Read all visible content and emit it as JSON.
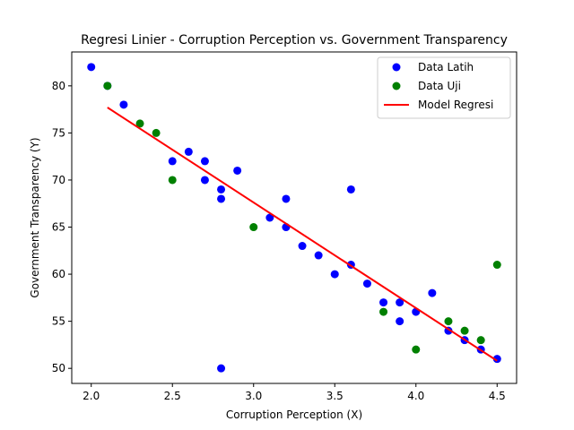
{
  "chart_data": {
    "type": "scatter",
    "title": "Regresi Linier - Corruption Perception vs. Government Transparency",
    "xlabel": "Corruption Perception (X)",
    "ylabel": "Government Transparency (Y)",
    "xlim": [
      1.88,
      4.62
    ],
    "ylim": [
      48.4,
      83.6
    ],
    "xticks": [
      2.0,
      2.5,
      3.0,
      3.5,
      4.0,
      4.5
    ],
    "yticks": [
      50,
      55,
      60,
      65,
      70,
      75,
      80
    ],
    "grid": false,
    "legend_position": "top-right",
    "series": [
      {
        "name": "Data Latih",
        "kind": "scatter",
        "color": "#0000ff",
        "points": [
          [
            2.0,
            82
          ],
          [
            2.1,
            80
          ],
          [
            2.2,
            78
          ],
          [
            2.5,
            72
          ],
          [
            2.6,
            73
          ],
          [
            2.7,
            72
          ],
          [
            2.7,
            70
          ],
          [
            2.8,
            69
          ],
          [
            2.8,
            68
          ],
          [
            2.8,
            50
          ],
          [
            2.9,
            71
          ],
          [
            3.1,
            66
          ],
          [
            3.2,
            68
          ],
          [
            3.2,
            65
          ],
          [
            3.3,
            63
          ],
          [
            3.4,
            62
          ],
          [
            3.5,
            60
          ],
          [
            3.6,
            69
          ],
          [
            3.6,
            61
          ],
          [
            3.7,
            59
          ],
          [
            3.8,
            57
          ],
          [
            3.9,
            57
          ],
          [
            3.9,
            55
          ],
          [
            4.0,
            56
          ],
          [
            4.1,
            58
          ],
          [
            4.2,
            54
          ],
          [
            4.3,
            53
          ],
          [
            4.4,
            52
          ],
          [
            4.5,
            51
          ]
        ]
      },
      {
        "name": "Data Uji",
        "kind": "scatter",
        "color": "#008000",
        "points": [
          [
            2.1,
            80
          ],
          [
            2.3,
            76
          ],
          [
            2.4,
            75
          ],
          [
            2.5,
            70
          ],
          [
            3.0,
            65
          ],
          [
            3.8,
            56
          ],
          [
            4.0,
            52
          ],
          [
            4.2,
            55
          ],
          [
            4.3,
            54
          ],
          [
            4.4,
            53
          ],
          [
            4.5,
            61
          ]
        ]
      },
      {
        "name": "Model Regresi",
        "kind": "line",
        "color": "#ff0000",
        "points": [
          [
            2.1,
            77.7
          ],
          [
            4.5,
            50.8
          ]
        ]
      }
    ]
  }
}
